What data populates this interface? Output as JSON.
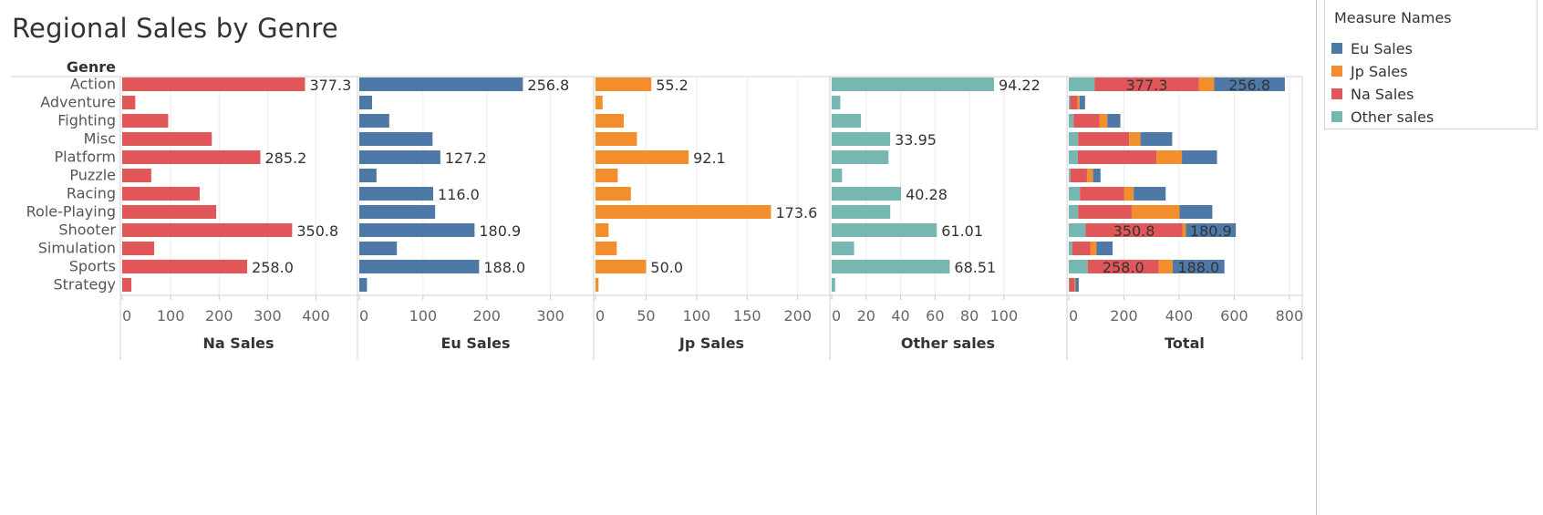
{
  "title": "Regional Sales by Genre",
  "colors": {
    "eu": "#4e79a7",
    "jp": "#f28e2b",
    "na": "#e15759",
    "other": "#76b7b2"
  },
  "legend": {
    "title": "Measure Names",
    "items": [
      {
        "label": "Eu Sales",
        "color": "#4e79a7"
      },
      {
        "label": "Jp Sales",
        "color": "#f28e2b"
      },
      {
        "label": "Na Sales",
        "color": "#e15759"
      },
      {
        "label": "Other sales",
        "color": "#76b7b2"
      }
    ]
  },
  "chart_data": {
    "type": "bar",
    "orientation": "horizontal",
    "row_header": "Genre",
    "categories": [
      "Action",
      "Adventure",
      "Fighting",
      "Misc",
      "Platform",
      "Puzzle",
      "Racing",
      "Role-Playing",
      "Shooter",
      "Simulation",
      "Sports",
      "Strategy"
    ],
    "panels": [
      {
        "key": "na",
        "label": "Na Sales",
        "color": "#e15759",
        "xlim": [
          0,
          480
        ],
        "ticks": [
          0,
          100,
          200,
          300,
          400
        ],
        "values": [
          377.3,
          27,
          95,
          185,
          285.2,
          60,
          160,
          194,
          350.8,
          66,
          258.0,
          19
        ],
        "labels": [
          "377.3",
          "",
          "",
          "",
          "285.2",
          "",
          "",
          "",
          "350.8",
          "",
          "258.0",
          ""
        ]
      },
      {
        "key": "eu",
        "label": "Eu Sales",
        "color": "#4e79a7",
        "xlim": [
          0,
          365
        ],
        "ticks": [
          0,
          100,
          200,
          300
        ],
        "values": [
          256.8,
          20,
          47,
          115,
          127.2,
          27,
          116.0,
          119,
          180.9,
          59,
          188.0,
          12
        ],
        "labels": [
          "256.8",
          "",
          "",
          "",
          "127.2",
          "",
          "116.0",
          "",
          "180.9",
          "",
          "188.0",
          ""
        ]
      },
      {
        "key": "jp",
        "label": "Jp Sales",
        "color": "#f28e2b",
        "xlim": [
          0,
          230
        ],
        "ticks": [
          0,
          50,
          100,
          150,
          200
        ],
        "values": [
          55.2,
          7,
          28,
          41,
          92.1,
          22,
          35,
          173.6,
          13,
          21,
          50.0,
          3
        ],
        "labels": [
          "55.2",
          "",
          "",
          "",
          "92.1",
          "",
          "",
          "173.6",
          "",
          "",
          "50.0",
          ""
        ]
      },
      {
        "key": "other",
        "label": "Other sales",
        "color": "#76b7b2",
        "xlim": [
          0,
          135
        ],
        "ticks": [
          0,
          20,
          40,
          60,
          80,
          100
        ],
        "values": [
          94.22,
          5,
          17,
          33.95,
          33,
          6,
          40.28,
          34,
          61.01,
          13,
          68.51,
          2
        ],
        "labels": [
          "94.22",
          "",
          "",
          "33.95",
          "",
          "",
          "40.28",
          "",
          "61.01",
          "",
          "68.51",
          ""
        ]
      }
    ],
    "total": {
      "label": "Total",
      "xlim": [
        0,
        840
      ],
      "ticks": [
        0,
        200,
        400,
        600,
        800
      ],
      "stack_order": [
        "other",
        "na",
        "jp",
        "eu"
      ],
      "stack_labels": [
        "na",
        "eu"
      ],
      "label_rows": [
        0,
        8,
        10
      ]
    }
  }
}
